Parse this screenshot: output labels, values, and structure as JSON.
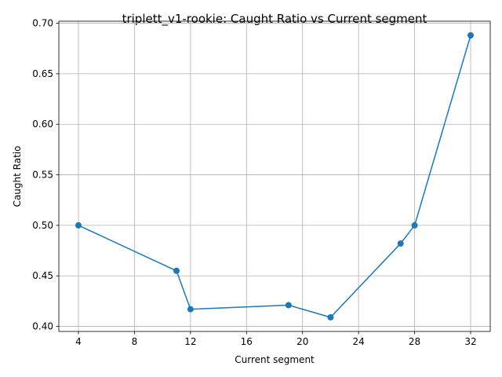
{
  "chart_data": {
    "type": "line",
    "title": "triplett_v1-rookie: Caught Ratio vs Current segment",
    "xlabel": "Current segment",
    "ylabel": "Caught Ratio",
    "xlim": [
      2.6,
      33.4
    ],
    "ylim": [
      0.395,
      0.702
    ],
    "xticks": [
      4,
      8,
      12,
      16,
      20,
      24,
      28,
      32
    ],
    "yticks": [
      0.4,
      0.45,
      0.5,
      0.55,
      0.6,
      0.65,
      0.7
    ],
    "ytick_labels": [
      "0.40",
      "0.45",
      "0.50",
      "0.55",
      "0.60",
      "0.65",
      "0.70"
    ],
    "grid": true,
    "series": [
      {
        "color": "#1f77b4",
        "marker": "circle",
        "x": [
          4,
          11,
          12,
          19,
          22,
          27,
          28,
          32
        ],
        "y": [
          0.5,
          0.455,
          0.417,
          0.421,
          0.409,
          0.482,
          0.5,
          0.688
        ]
      }
    ]
  }
}
